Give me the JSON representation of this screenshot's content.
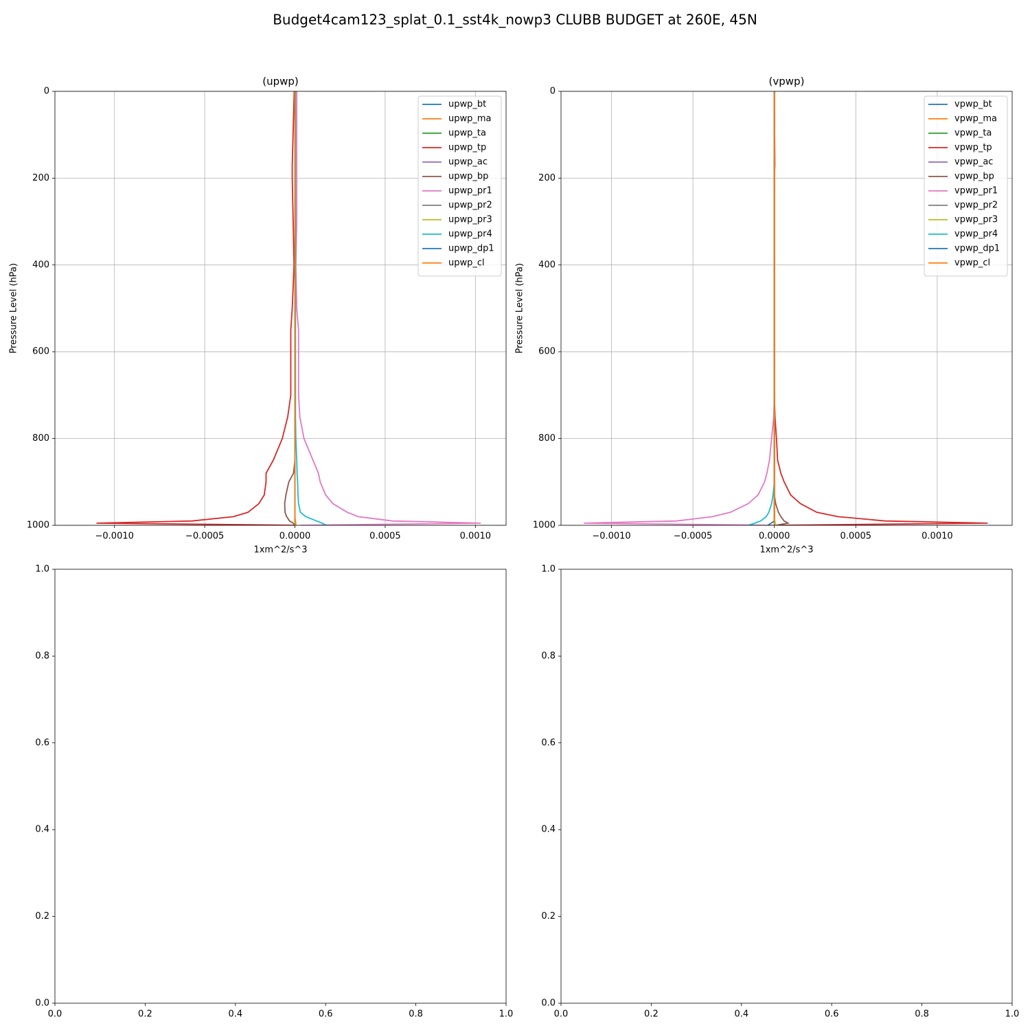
{
  "title": "Budget4cam123_splat_0.1_sst4k_nowp3 CLUBB BUDGET at 260E, 45N",
  "chart_data": [
    {
      "type": "line",
      "title": "(upwp)",
      "xlabel": "1xm^2/s^3",
      "ylabel": "Pressure Level (hPa)",
      "y": [
        0,
        170,
        200,
        300,
        400,
        500,
        550,
        600,
        700,
        750,
        800,
        850,
        880,
        900,
        930,
        950,
        970,
        980,
        990,
        995,
        1000
      ],
      "xlim": [
        -0.00133,
        0.00117
      ],
      "ylim": [
        1000,
        0
      ],
      "xticks": [
        {
          "value": -0.001,
          "label": "−0.0010"
        },
        {
          "value": -0.0005,
          "label": "−0.0005"
        },
        {
          "value": 0,
          "label": "0.0000"
        },
        {
          "value": 0.0005,
          "label": "0.0005"
        },
        {
          "value": 0.001,
          "label": "0.0010"
        }
      ],
      "yticks": [
        0,
        200,
        400,
        600,
        800,
        1000
      ],
      "grid": true,
      "legend": "upper right",
      "series": [
        {
          "name": "upwp_bt",
          "color": "#1f77b4",
          "values": [
            0,
            0,
            0,
            0,
            0,
            0,
            0,
            0,
            0,
            0,
            0,
            0,
            0,
            0,
            0,
            0,
            0,
            0,
            0,
            0,
            0
          ]
        },
        {
          "name": "upwp_ma",
          "color": "#ff7f0e",
          "values": [
            0,
            0,
            0,
            0,
            0,
            0,
            0,
            0,
            0,
            0,
            0,
            0,
            0,
            0,
            0,
            0,
            0,
            0,
            0,
            0,
            0
          ]
        },
        {
          "name": "upwp_ta",
          "color": "#2ca02c",
          "values": [
            0,
            0,
            0,
            0,
            0,
            0,
            0,
            0,
            0,
            0,
            0,
            0,
            0,
            0,
            0,
            0,
            0,
            0,
            0,
            0,
            0
          ]
        },
        {
          "name": "upwp_tp",
          "color": "#d62728",
          "values": [
            -4e-06,
            -1.5e-05,
            -1.5e-05,
            -1e-05,
            -5e-06,
            -1.5e-05,
            -2.3e-05,
            -2.3e-05,
            -2.3e-05,
            -4e-05,
            -7e-05,
            -0.00012,
            -0.00016,
            -0.00016,
            -0.00017,
            -0.0002,
            -0.00026,
            -0.00034,
            -0.00057,
            -0.0011,
            1e-05
          ]
        },
        {
          "name": "upwp_ac",
          "color": "#9467bd",
          "values": [
            0,
            0,
            0,
            0,
            0,
            0,
            0,
            0,
            0,
            0,
            0,
            0,
            0,
            0,
            0,
            0,
            0,
            0,
            0,
            0,
            0
          ]
        },
        {
          "name": "upwp_bp",
          "color": "#8c564b",
          "values": [
            0,
            0,
            0,
            0,
            0,
            0,
            0,
            0,
            0,
            0,
            0,
            0,
            -8e-06,
            -3.4e-05,
            -5e-05,
            -5.7e-05,
            -5.5e-05,
            -4.6e-05,
            -3e-05,
            -1e-05,
            0
          ]
        },
        {
          "name": "upwp_pr1",
          "color": "#e377c2",
          "values": [
            1e-05,
            1e-05,
            1e-05,
            1e-05,
            5e-06,
            1e-05,
            2e-05,
            2e-05,
            2e-05,
            2.7e-05,
            5e-05,
            0.0001,
            0.00013,
            0.00014,
            0.00017,
            0.00021,
            0.00029,
            0.00035,
            0.00054,
            0.00103,
            3e-05
          ]
        },
        {
          "name": "upwp_pr2",
          "color": "#7f7f7f",
          "values": [
            0,
            0,
            0,
            0,
            0,
            0,
            0,
            0,
            0,
            0,
            0,
            0,
            0,
            0,
            0,
            0,
            0,
            0,
            0,
            0,
            0
          ]
        },
        {
          "name": "upwp_pr3",
          "color": "#bcbd22",
          "values": [
            0,
            0,
            0,
            0,
            0,
            0,
            0,
            0,
            0,
            0,
            0,
            0,
            0,
            0,
            0,
            0,
            0,
            0,
            3e-06,
            5e-06,
            5e-06
          ]
        },
        {
          "name": "upwp_pr4",
          "color": "#17becf",
          "values": [
            3e-06,
            3e-06,
            3e-06,
            3e-06,
            3e-06,
            3e-06,
            3e-06,
            3e-06,
            3e-06,
            3e-06,
            5e-06,
            1e-05,
            1.2e-05,
            1.5e-05,
            1.7e-05,
            2e-05,
            3e-05,
            6e-05,
            0.00012,
            0.00015,
            0.000175
          ]
        },
        {
          "name": "upwp_dp1",
          "color": "#1f77b4",
          "values": [
            0,
            0,
            0,
            0,
            0,
            0,
            0,
            0,
            0,
            0,
            0,
            0,
            0,
            0,
            0,
            0,
            0,
            0,
            0,
            0,
            0
          ]
        },
        {
          "name": "upwp_cl",
          "color": "#ff7f0e",
          "values": [
            0,
            0,
            0,
            0,
            0,
            0,
            0,
            0,
            0,
            0,
            0,
            0,
            0,
            0,
            0,
            0,
            0,
            0,
            0,
            0,
            0
          ]
        }
      ]
    },
    {
      "type": "line",
      "title": "(vpwp)",
      "xlabel": "1xm^2/s^3",
      "ylabel": "Pressure Level (hPa)",
      "y": [
        0,
        170,
        200,
        300,
        400,
        500,
        550,
        600,
        700,
        750,
        800,
        850,
        880,
        900,
        930,
        950,
        970,
        980,
        990,
        995,
        1000
      ],
      "xlim": [
        -0.00131,
        0.00146
      ],
      "ylim": [
        1000,
        0
      ],
      "xticks": [
        {
          "value": -0.001,
          "label": "−0.0010"
        },
        {
          "value": -0.0005,
          "label": "−0.0005"
        },
        {
          "value": 0,
          "label": "0.0000"
        },
        {
          "value": 0.0005,
          "label": "0.0005"
        },
        {
          "value": 0.001,
          "label": "0.0010"
        }
      ],
      "yticks": [
        0,
        200,
        400,
        600,
        800,
        1000
      ],
      "grid": true,
      "legend": "upper right",
      "series": [
        {
          "name": "vpwp_bt",
          "color": "#1f77b4",
          "values": [
            0,
            0,
            0,
            0,
            0,
            0,
            0,
            0,
            0,
            0,
            0,
            0,
            0,
            0,
            0,
            0,
            0,
            0,
            0,
            0,
            0
          ]
        },
        {
          "name": "vpwp_ma",
          "color": "#ff7f0e",
          "values": [
            0,
            0,
            0,
            0,
            0,
            0,
            0,
            0,
            0,
            0,
            0,
            0,
            0,
            0,
            0,
            0,
            0,
            0,
            0,
            0,
            0
          ]
        },
        {
          "name": "vpwp_ta",
          "color": "#2ca02c",
          "values": [
            0,
            0,
            0,
            0,
            0,
            0,
            0,
            0,
            0,
            0,
            0,
            0,
            0,
            0,
            0,
            0,
            0,
            0,
            0,
            0,
            0
          ]
        },
        {
          "name": "vpwp_tp",
          "color": "#d62728",
          "values": [
            0,
            3e-06,
            0,
            0,
            0,
            0,
            0,
            0,
            0,
            4e-06,
            1.3e-05,
            2e-05,
            4e-05,
            6e-05,
            0.0001,
            0.00016,
            0.00026,
            0.00039,
            0.00068,
            0.00131,
            1e-05
          ]
        },
        {
          "name": "vpwp_ac",
          "color": "#9467bd",
          "values": [
            0,
            0,
            0,
            0,
            0,
            0,
            0,
            0,
            0,
            0,
            0,
            0,
            0,
            0,
            0,
            0,
            0,
            0,
            0,
            0,
            0
          ]
        },
        {
          "name": "vpwp_bp",
          "color": "#8c564b",
          "values": [
            0,
            0,
            0,
            0,
            0,
            0,
            0,
            0,
            0,
            0,
            0,
            0,
            0,
            0,
            0,
            8e-06,
            2.5e-05,
            4e-05,
            6e-05,
            8.4e-05,
            1e-05
          ]
        },
        {
          "name": "vpwp_pr1",
          "color": "#e377c2",
          "values": [
            0,
            0,
            0,
            0,
            0,
            0,
            0,
            0,
            0,
            -4e-06,
            -1.7e-05,
            -3e-05,
            -4.6e-05,
            -6e-05,
            -0.0001,
            -0.00016,
            -0.00027,
            -0.00038,
            -0.0006,
            -0.00117,
            -1e-05
          ]
        },
        {
          "name": "vpwp_pr2",
          "color": "#7f7f7f",
          "values": [
            0,
            0,
            0,
            0,
            0,
            0,
            0,
            0,
            0,
            0,
            0,
            0,
            0,
            0,
            0,
            0,
            0,
            0,
            0,
            0,
            0
          ]
        },
        {
          "name": "vpwp_pr3",
          "color": "#bcbd22",
          "values": [
            0,
            0,
            0,
            0,
            0,
            0,
            0,
            0,
            0,
            0,
            0,
            0,
            0,
            0,
            0,
            0,
            0,
            0,
            3e-06,
            5e-06,
            5e-06
          ]
        },
        {
          "name": "vpwp_pr4",
          "color": "#17becf",
          "values": [
            0,
            0,
            0,
            0,
            0,
            0,
            0,
            0,
            0,
            0,
            0,
            0,
            0,
            0,
            -8e-06,
            -1.7e-05,
            -3.4e-05,
            -5e-05,
            -8.4e-05,
            -0.00012,
            -0.00016
          ]
        },
        {
          "name": "vpwp_dp1",
          "color": "#1f77b4",
          "values": [
            0,
            0,
            0,
            0,
            0,
            0,
            0,
            0,
            0,
            0,
            0,
            0,
            0,
            0,
            0,
            0,
            0,
            0,
            0,
            -2e-05,
            -4e-05
          ]
        },
        {
          "name": "vpwp_cl",
          "color": "#ff7f0e",
          "values": [
            0,
            0,
            0,
            0,
            0,
            0,
            0,
            0,
            0,
            0,
            0,
            0,
            0,
            0,
            0,
            0,
            0,
            0,
            0,
            0,
            0
          ]
        }
      ]
    },
    {
      "type": "line",
      "xlim": [
        0,
        1
      ],
      "ylim": [
        0,
        1
      ],
      "xticks": [
        {
          "value": 0,
          "label": "0.0"
        },
        {
          "value": 0.2,
          "label": "0.2"
        },
        {
          "value": 0.4,
          "label": "0.4"
        },
        {
          "value": 0.6,
          "label": "0.6"
        },
        {
          "value": 0.8,
          "label": "0.8"
        },
        {
          "value": 1,
          "label": "1.0"
        }
      ],
      "yticks": [
        {
          "value": 0,
          "label": "0.0"
        },
        {
          "value": 0.2,
          "label": "0.2"
        },
        {
          "value": 0.4,
          "label": "0.4"
        },
        {
          "value": 0.6,
          "label": "0.6"
        },
        {
          "value": 0.8,
          "label": "0.8"
        },
        {
          "value": 1,
          "label": "1.0"
        }
      ]
    },
    {
      "type": "line",
      "xlim": [
        0,
        1
      ],
      "ylim": [
        0,
        1
      ],
      "xticks": [
        {
          "value": 0,
          "label": "0.0"
        },
        {
          "value": 0.2,
          "label": "0.2"
        },
        {
          "value": 0.4,
          "label": "0.4"
        },
        {
          "value": 0.6,
          "label": "0.6"
        },
        {
          "value": 0.8,
          "label": "0.8"
        },
        {
          "value": 1,
          "label": "1.0"
        }
      ],
      "yticks": [
        {
          "value": 0,
          "label": "0.0"
        },
        {
          "value": 0.2,
          "label": "0.2"
        },
        {
          "value": 0.4,
          "label": "0.4"
        },
        {
          "value": 0.6,
          "label": "0.6"
        },
        {
          "value": 0.8,
          "label": "0.8"
        },
        {
          "value": 1,
          "label": "1.0"
        }
      ]
    }
  ]
}
